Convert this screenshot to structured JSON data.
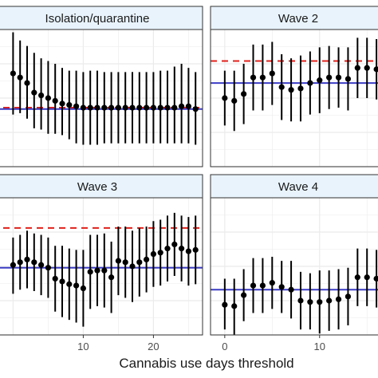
{
  "chart_data": {
    "type": "scatter",
    "xlabel": "Cannabis use days threshold",
    "ylabel": "",
    "grid": true,
    "colors": {
      "points": "#000000",
      "blue_line": "#3b3bc4",
      "red_dashed": "#e0201b",
      "strip_fill": "#e8f3fc",
      "grid": "#ebebeb"
    },
    "panels": [
      {
        "title": "Isolation/quarantine",
        "xlim": [
          -3,
          27
        ],
        "ylim": [
          0,
          10
        ],
        "xticks": [
          10,
          20
        ],
        "hline_blue": 4.2,
        "hline_red": 4.3,
        "x": [
          0,
          1,
          2,
          3,
          4,
          5,
          6,
          7,
          8,
          9,
          10,
          11,
          12,
          13,
          14,
          15,
          16,
          17,
          18,
          19,
          20,
          21,
          22,
          23,
          24,
          25,
          26
        ],
        "y": [
          6.8,
          6.5,
          6.1,
          5.4,
          5.2,
          5.0,
          4.8,
          4.6,
          4.5,
          4.4,
          4.3,
          4.3,
          4.3,
          4.3,
          4.3,
          4.3,
          4.3,
          4.3,
          4.3,
          4.3,
          4.3,
          4.3,
          4.3,
          4.3,
          4.4,
          4.4,
          4.2
        ],
        "lower": [
          3.8,
          3.9,
          3.5,
          2.8,
          2.7,
          2.4,
          2.4,
          2.3,
          2.0,
          1.7,
          1.6,
          1.6,
          1.6,
          1.7,
          1.7,
          1.7,
          1.7,
          1.7,
          1.7,
          1.7,
          1.7,
          1.7,
          1.7,
          1.7,
          1.7,
          1.7,
          1.6
        ],
        "upper": [
          9.8,
          9.2,
          8.8,
          8.3,
          7.9,
          7.7,
          7.5,
          7.2,
          7.0,
          7.0,
          6.9,
          7.0,
          7.0,
          6.9,
          6.9,
          6.9,
          6.9,
          6.9,
          6.9,
          6.9,
          6.9,
          7.0,
          7.0,
          7.3,
          7.5,
          7.2,
          6.9
        ]
      },
      {
        "title": "Wave 2",
        "xlim": [
          -1.5,
          17
        ],
        "ylim": [
          0,
          10
        ],
        "xticks": [
          0,
          10
        ],
        "hline_blue": 6.1,
        "hline_red": 7.7,
        "x": [
          0,
          1,
          2,
          3,
          4,
          5,
          6,
          7,
          8,
          9,
          10,
          11,
          12,
          13,
          14,
          15,
          16
        ],
        "y": [
          5.0,
          4.8,
          5.3,
          6.5,
          6.5,
          6.8,
          5.8,
          5.6,
          5.7,
          6.1,
          6.3,
          6.5,
          6.5,
          6.4,
          7.2,
          7.2,
          7.1
        ],
        "lower": [
          3.0,
          2.6,
          3.1,
          4.1,
          4.1,
          4.5,
          3.4,
          3.3,
          3.3,
          3.8,
          3.9,
          4.2,
          4.3,
          4.1,
          5.0,
          5.0,
          4.9
        ],
        "upper": [
          7.0,
          7.0,
          7.5,
          8.9,
          8.9,
          9.1,
          8.2,
          7.9,
          8.1,
          8.4,
          8.7,
          8.8,
          8.7,
          8.7,
          9.4,
          9.4,
          9.3
        ]
      },
      {
        "title": "Wave 3",
        "xlim": [
          -3,
          27
        ],
        "ylim": [
          0,
          10
        ],
        "xticks": [
          10,
          20
        ],
        "hline_blue": 4.9,
        "hline_red": 7.8,
        "x": [
          0,
          1,
          2,
          3,
          4,
          5,
          6,
          7,
          8,
          9,
          10,
          11,
          12,
          13,
          14,
          15,
          16,
          17,
          18,
          19,
          20,
          21,
          22,
          23,
          24,
          25,
          26
        ],
        "y": [
          5.1,
          5.3,
          5.5,
          5.3,
          5.1,
          4.9,
          4.1,
          3.9,
          3.7,
          3.6,
          3.4,
          4.6,
          4.7,
          4.7,
          4.2,
          5.4,
          5.3,
          5.0,
          5.3,
          5.5,
          5.9,
          6.0,
          6.3,
          6.6,
          6.3,
          6.1,
          6.2
        ],
        "lower": [
          3.0,
          3.3,
          3.4,
          3.2,
          2.9,
          2.7,
          1.7,
          1.3,
          1.1,
          0.9,
          0.6,
          1.9,
          2.1,
          2.0,
          1.6,
          2.9,
          2.7,
          2.4,
          2.8,
          3.1,
          3.5,
          3.6,
          3.9,
          4.3,
          3.9,
          3.6,
          3.7
        ],
        "upper": [
          7.1,
          7.3,
          7.6,
          7.4,
          7.3,
          7.1,
          6.5,
          6.5,
          6.3,
          6.2,
          6.2,
          7.3,
          7.3,
          7.4,
          6.8,
          7.9,
          7.9,
          7.6,
          7.8,
          7.9,
          8.3,
          8.4,
          8.7,
          8.9,
          8.7,
          8.6,
          8.7
        ]
      },
      {
        "title": "Wave 4",
        "xlim": [
          -1.5,
          17
        ],
        "ylim": [
          0,
          10
        ],
        "xticks": [
          0,
          10
        ],
        "hline_blue": 3.3,
        "hline_red": null,
        "x": [
          0,
          1,
          2,
          3,
          4,
          5,
          6,
          7,
          8,
          9,
          10,
          11,
          12,
          13,
          14,
          15,
          16
        ],
        "y": [
          2.2,
          2.1,
          2.9,
          3.6,
          3.6,
          3.8,
          3.5,
          3.3,
          2.5,
          2.4,
          2.4,
          2.5,
          2.6,
          2.8,
          4.2,
          4.2,
          4.1
        ],
        "lower": [
          0.4,
          0.0,
          1.0,
          1.6,
          1.6,
          1.9,
          1.6,
          1.2,
          0.4,
          0.4,
          0.1,
          0.3,
          0.4,
          0.7,
          2.1,
          2.1,
          2.0
        ],
        "upper": [
          4.1,
          4.1,
          4.8,
          5.6,
          5.6,
          5.7,
          5.4,
          5.4,
          4.6,
          4.5,
          4.7,
          4.7,
          4.8,
          4.9,
          6.3,
          6.3,
          6.2
        ]
      }
    ]
  }
}
